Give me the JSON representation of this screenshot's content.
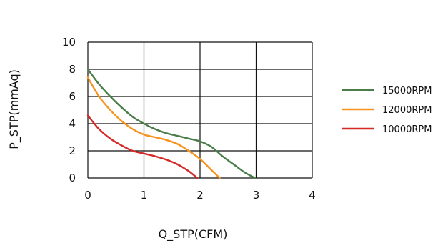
{
  "chart_data": {
    "type": "line",
    "title": "",
    "xlabel": "Q_STP(CFM)",
    "ylabel": "P_STP(mmAq)",
    "xlim": [
      0,
      4
    ],
    "ylim": [
      0,
      10
    ],
    "x_ticks": [
      "0",
      "1",
      "2",
      "3",
      "4"
    ],
    "y_ticks": [
      "0",
      "2",
      "4",
      "6",
      "8",
      "10"
    ],
    "grid": true,
    "legend_position": "right",
    "series": [
      {
        "name": "15000RPM",
        "color": "#4a7d4a",
        "x": [
          0,
          0.2,
          0.4,
          0.6,
          0.8,
          1.0,
          1.2,
          1.4,
          1.6,
          1.8,
          2.0,
          2.2,
          2.4,
          2.6,
          2.8,
          2.98
        ],
        "y": [
          8.0,
          6.9,
          6.0,
          5.2,
          4.5,
          4.0,
          3.6,
          3.3,
          3.1,
          2.9,
          2.7,
          2.3,
          1.6,
          1.0,
          0.4,
          0.0
        ]
      },
      {
        "name": "12000RPM",
        "color": "#f7931e",
        "x": [
          0,
          0.2,
          0.4,
          0.6,
          0.8,
          1.0,
          1.2,
          1.4,
          1.6,
          1.8,
          2.0,
          2.2,
          2.35
        ],
        "y": [
          7.4,
          6.0,
          5.0,
          4.2,
          3.6,
          3.2,
          3.0,
          2.8,
          2.5,
          2.0,
          1.4,
          0.6,
          0.0
        ]
      },
      {
        "name": "10000RPM",
        "color": "#d42a27",
        "x": [
          0,
          0.2,
          0.4,
          0.6,
          0.8,
          1.0,
          1.2,
          1.4,
          1.6,
          1.8,
          1.95
        ],
        "y": [
          4.6,
          3.6,
          2.9,
          2.4,
          2.0,
          1.8,
          1.6,
          1.35,
          1.0,
          0.5,
          0.0
        ]
      }
    ]
  }
}
